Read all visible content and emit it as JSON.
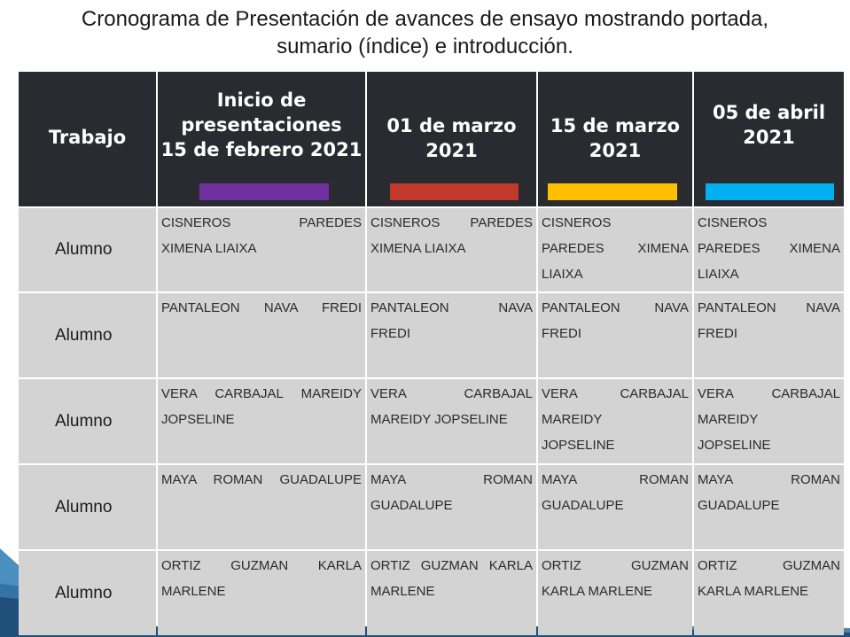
{
  "title_lines": [
    "Cronograma de Presentación de avances de ensayo mostrando portada,",
    "sumario (índice) e introducción."
  ],
  "header": {
    "col0": [
      "Trabajo"
    ],
    "col1": [
      "Inicio de",
      "presentaciones",
      "15 de febrero 2021"
    ],
    "col2": [
      "01 de marzo",
      "2021"
    ],
    "col3": [
      "15 de marzo",
      "2021"
    ],
    "col4": [
      "05 de abril",
      "2021"
    ]
  },
  "colors": {
    "header_bg": "#2a2b31",
    "bar1": "#7030a0",
    "bar2": "#c0392b",
    "bar3": "#ffc000",
    "bar4": "#00b0f0",
    "cell_bg": "#d3d3d3"
  },
  "rows": [
    {
      "label": "Alumno",
      "c1": [
        "CISNEROS PAREDES",
        "XIMENA LIAIXA"
      ],
      "c2": [
        "CISNEROS PAREDES",
        "XIMENA LIAIXA"
      ],
      "c3": [
        "CISNEROS",
        "PAREDES XIMENA",
        "LIAIXA"
      ],
      "c4": [
        "CISNEROS",
        "PAREDES XIMENA",
        "LIAIXA"
      ]
    },
    {
      "label": "Alumno",
      "c1": [
        "PANTALEON NAVA FREDI"
      ],
      "c2": [
        "PANTALEON NAVA",
        "FREDI"
      ],
      "c3": [
        "PANTALEON NAVA",
        "FREDI"
      ],
      "c4": [
        "PANTALEON NAVA",
        "FREDI"
      ]
    },
    {
      "label": "Alumno",
      "c1": [
        "VERA CARBAJAL MAREIDY",
        "JOPSELINE"
      ],
      "c2": [
        "VERA CARBAJAL",
        "MAREIDY JOPSELINE"
      ],
      "c3": [
        "VERA CARBAJAL",
        "MAREIDY",
        "JOPSELINE"
      ],
      "c4": [
        "VERA CARBAJAL",
        "MAREIDY",
        "JOPSELINE"
      ]
    },
    {
      "label": "Alumno",
      "c1": [
        "MAYA ROMAN GUADALUPE"
      ],
      "c2": [
        "MAYA ROMAN",
        "GUADALUPE"
      ],
      "c3": [
        "MAYA ROMAN",
        "GUADALUPE"
      ],
      "c4": [
        "MAYA ROMAN",
        "GUADALUPE"
      ]
    },
    {
      "label": "Alumno",
      "c1": [
        "ORTIZ GUZMAN KARLA",
        "MARLENE"
      ],
      "c2": [
        "ORTIZ GUZMAN KARLA",
        "MARLENE"
      ],
      "c3": [
        "ORTIZ GUZMAN",
        "KARLA MARLENE"
      ],
      "c4": [
        "ORTIZ GUZMAN",
        "KARLA MARLENE"
      ]
    }
  ]
}
